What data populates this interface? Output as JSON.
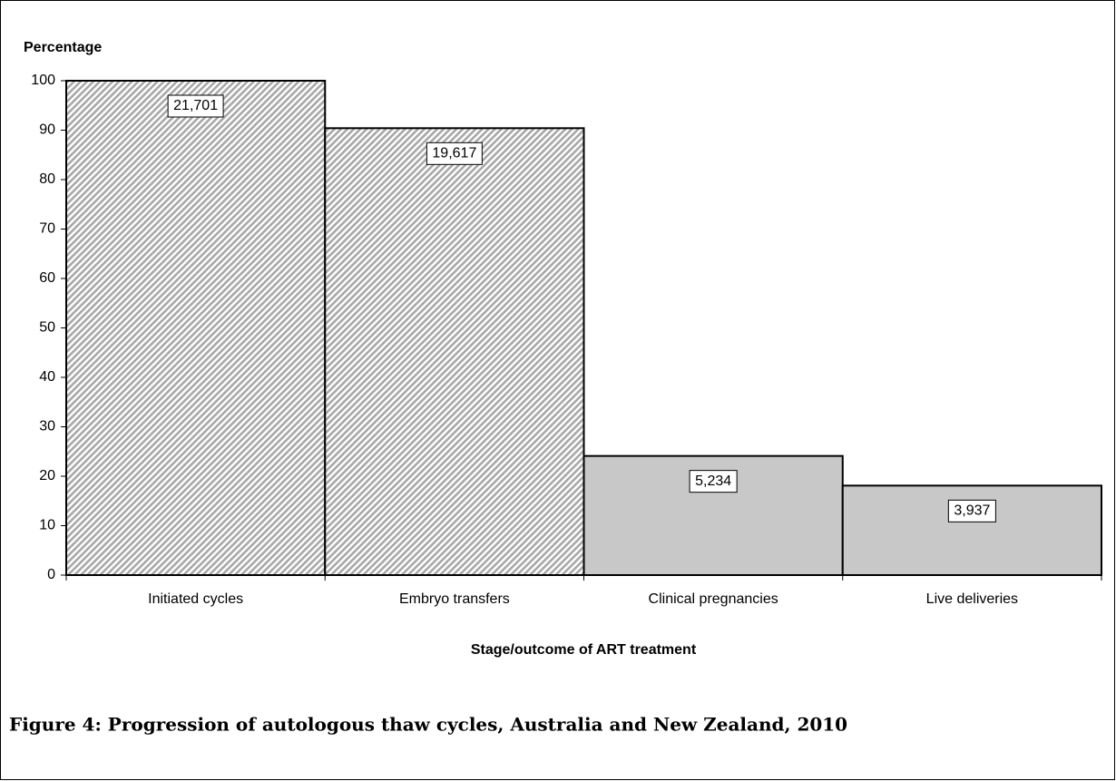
{
  "chart_data": {
    "type": "bar",
    "caption": "Figure 4: Progression of autologous thaw cycles, Australia and New Zealand, 2010",
    "y_label": "Percentage",
    "x_label": "Stage/outcome of ART treatment",
    "categories": [
      "Initiated cycles",
      "Embryo transfers",
      "Clinical pregnancies",
      "Live deliveries"
    ],
    "values": [
      100,
      90.4,
      24.1,
      18.1
    ],
    "count_labels": [
      "21,701",
      "19,617",
      "5,234",
      "3,937"
    ],
    "color": "#c8c8c8",
    "hatched": [
      true,
      true,
      false,
      false
    ],
    "ylim": [
      0,
      100
    ],
    "yticks": [
      0,
      10,
      20,
      30,
      40,
      50,
      60,
      70,
      80,
      90,
      100
    ]
  }
}
